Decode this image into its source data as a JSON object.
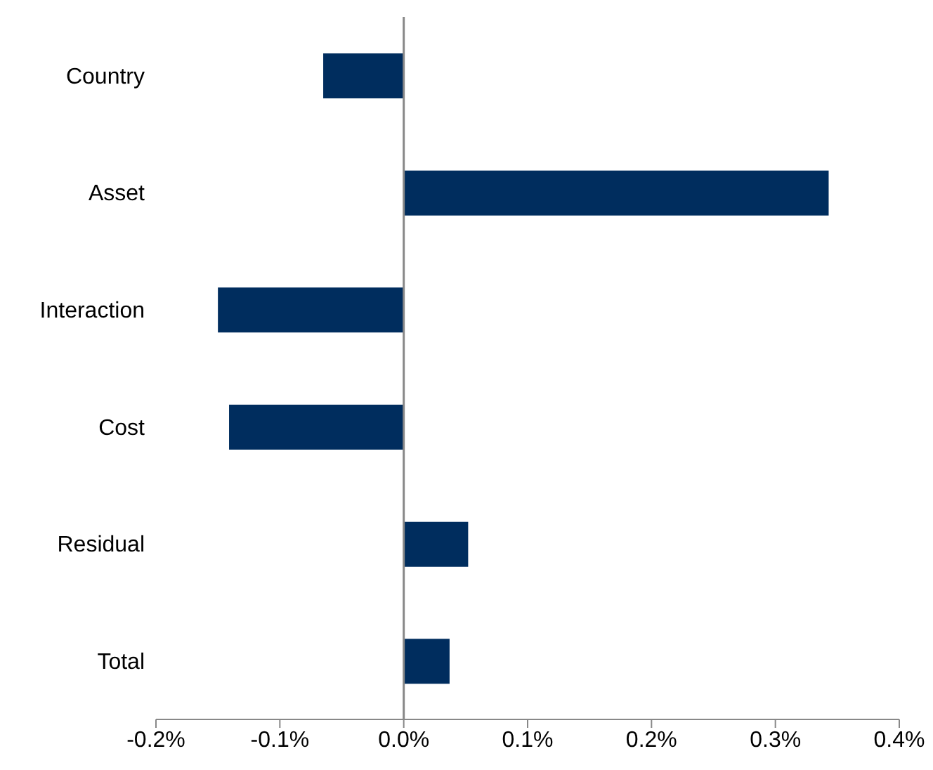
{
  "chart_data": {
    "type": "bar",
    "orientation": "horizontal",
    "categories": [
      "Country",
      "Asset",
      "Interaction",
      "Cost",
      "Residual",
      "Total"
    ],
    "values": [
      -0.065,
      0.343,
      -0.15,
      -0.141,
      0.052,
      0.037
    ],
    "color": "#002d5e",
    "xlim": [
      -0.2,
      0.4
    ],
    "xticks": [
      {
        "value": -0.2,
        "label": "-0.2%"
      },
      {
        "value": -0.1,
        "label": "-0.1%"
      },
      {
        "value": 0,
        "label": "0.0%"
      },
      {
        "value": 0.1,
        "label": "0.1%"
      },
      {
        "value": 0.2,
        "label": "0.2%"
      },
      {
        "value": 0.3,
        "label": "0.3%"
      },
      {
        "value": 0.4,
        "label": "0.4%"
      }
    ],
    "ref_lines": [
      {
        "axis": "x",
        "value": 0,
        "color": "#888888"
      }
    ]
  }
}
